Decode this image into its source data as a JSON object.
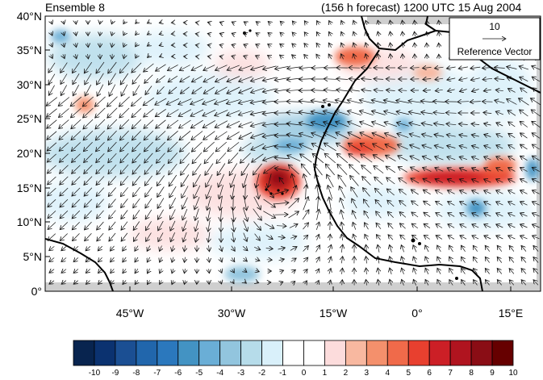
{
  "header": {
    "title_left": "Ensemble 8",
    "title_right": "(156 h forecast) 1200 UTC 15 Aug 2004"
  },
  "map": {
    "lat_labels": [
      "40°N",
      "35°N",
      "30°N",
      "25°N",
      "20°N",
      "15°N",
      "10°N",
      "5°N",
      "0°"
    ],
    "lon_labels": [
      "45°W",
      "30°W",
      "15°W",
      "0°",
      "15°E"
    ],
    "reference_vector": {
      "value": "10",
      "label": "Reference Vector"
    },
    "land_fill_color": "#cfcfcf",
    "coastline_color": "#000000"
  },
  "colorbar": {
    "labels": [
      "-10",
      "-9",
      "-8",
      "-7",
      "-6",
      "-5",
      "-4",
      "-3",
      "-2",
      "-1",
      "0",
      "1",
      "2",
      "3",
      "4",
      "5",
      "6",
      "7",
      "8",
      "9",
      "10"
    ],
    "colors": [
      "#08244f",
      "#0b3270",
      "#1b4f93",
      "#2166ac",
      "#2b78bd",
      "#4393c3",
      "#6aaed6",
      "#92c5de",
      "#b6dcea",
      "#d9f0fa",
      "#ffffff",
      "#ffffff",
      "#fcdcdc",
      "#f8b8a0",
      "#f4906c",
      "#f06a4a",
      "#e8402f",
      "#cc1f26",
      "#b0141f",
      "#8a0d15",
      "#660000"
    ]
  }
}
